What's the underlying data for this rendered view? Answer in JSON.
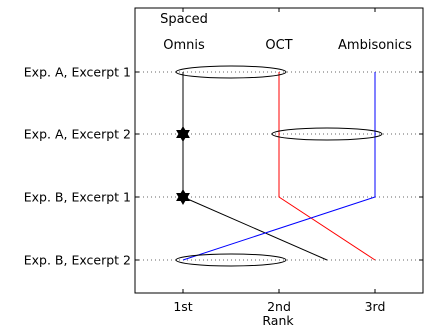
{
  "chart_data": {
    "type": "line",
    "xlabel": "Rank",
    "x_ticks": [
      "1st",
      "2nd",
      "3rd"
    ],
    "xlim": [
      0.5,
      3.5
    ],
    "categories": [
      "Exp. A, Excerpt 1",
      "Exp. A, Excerpt 2",
      "Exp. B, Excerpt 1",
      "Exp. B, Excerpt 2"
    ],
    "grid": "horizontal dotted",
    "series": [
      {
        "label_lines": [
          "Spaced",
          "Omnis"
        ],
        "color": "#000000",
        "ranks": [
          1,
          1,
          1,
          1
        ],
        "significant": [
          false,
          true,
          true,
          false
        ],
        "cross_link": {
          "from": 3,
          "to": 4,
          "ranks": [
            1,
            2.5
          ]
        }
      },
      {
        "label_lines": [
          "OCT"
        ],
        "color": "#ff0000",
        "ranks": [
          2,
          2,
          2,
          3
        ]
      },
      {
        "label_lines": [
          "Ambisonics"
        ],
        "color": "#0000ff",
        "ranks": [
          3,
          3,
          3,
          1
        ]
      }
    ],
    "ties": [
      {
        "excerpt": 1,
        "ranks": [
          1,
          2
        ]
      },
      {
        "excerpt": 2,
        "ranks": [
          2,
          3
        ]
      },
      {
        "excerpt": 4,
        "ranks": [
          1,
          2
        ]
      }
    ]
  }
}
